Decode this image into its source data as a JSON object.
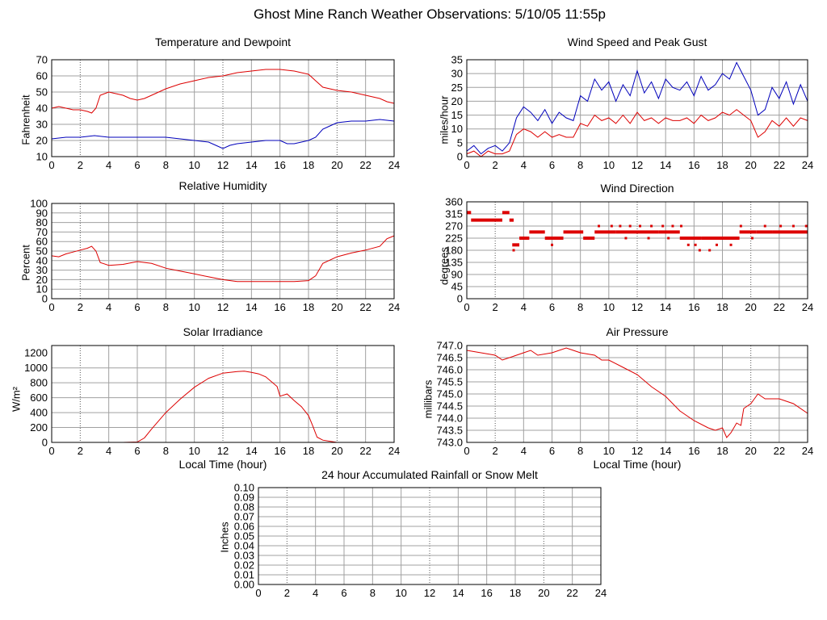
{
  "page": {
    "title": "Ghost Mine Ranch Weather Observations: 5/10/05 11:55p"
  },
  "colors": {
    "red": "#dd0000",
    "blue": "#0000bb",
    "grid": "#a0a0a0",
    "frame": "#000000"
  },
  "chart_data": [
    {
      "id": "temp",
      "type": "line",
      "title": "Temperature and Dewpoint",
      "ylabel": "Fahrenheit",
      "xlabel": "",
      "xlim": [
        0,
        24
      ],
      "ylim": [
        10,
        70
      ],
      "yticks": [
        10,
        20,
        30,
        40,
        50,
        60,
        70
      ],
      "xticks": [
        0,
        2,
        4,
        6,
        8,
        10,
        12,
        14,
        16,
        18,
        20,
        22,
        24
      ],
      "grid": true,
      "series": [
        {
          "color": "#dd0000",
          "x": [
            0,
            0.5,
            1,
            1.5,
            2,
            2.5,
            2.8,
            3.1,
            3.4,
            4,
            4.5,
            5,
            5.5,
            6,
            6.5,
            7,
            8,
            9,
            10,
            11,
            12,
            13,
            14,
            15,
            16,
            17,
            18,
            18.5,
            19,
            20,
            21,
            22,
            23,
            23.5,
            24
          ],
          "y": [
            40,
            41,
            40,
            39,
            39,
            38,
            37,
            40,
            48,
            50,
            49,
            48,
            46,
            45,
            46,
            48,
            52,
            55,
            57,
            59,
            60,
            62,
            63,
            64,
            64,
            63,
            61,
            57,
            53,
            51,
            50,
            48,
            46,
            44,
            43
          ]
        },
        {
          "color": "#0000bb",
          "x": [
            0,
            1,
            2,
            3,
            4,
            5,
            6,
            7,
            8,
            9,
            10,
            11,
            11.5,
            12,
            12.5,
            13,
            14,
            15,
            16,
            16.5,
            17,
            17.5,
            18,
            18.5,
            19,
            19.5,
            20,
            21,
            22,
            23,
            24
          ],
          "y": [
            21,
            22,
            22,
            23,
            22,
            22,
            22,
            22,
            22,
            21,
            20,
            19,
            17,
            15,
            17,
            18,
            19,
            20,
            20,
            18,
            18,
            19,
            20,
            22,
            27,
            29,
            31,
            32,
            32,
            33,
            32
          ]
        }
      ]
    },
    {
      "id": "wind",
      "type": "line",
      "title": "Wind Speed and Peak Gust",
      "ylabel": "miles/hour",
      "xlabel": "",
      "xlim": [
        0,
        24
      ],
      "ylim": [
        0,
        35
      ],
      "yticks": [
        0,
        5,
        10,
        15,
        20,
        25,
        30,
        35
      ],
      "xticks": [
        0,
        2,
        4,
        6,
        8,
        10,
        12,
        14,
        16,
        18,
        20,
        22,
        24
      ],
      "grid": true,
      "series": [
        {
          "color": "#0000bb",
          "x": [
            0,
            0.5,
            1,
            1.5,
            2,
            2.5,
            3,
            3.5,
            4,
            4.5,
            5,
            5.5,
            6,
            6.5,
            7,
            7.5,
            8,
            8.5,
            9,
            9.5,
            10,
            10.5,
            11,
            11.5,
            12,
            12.5,
            13,
            13.5,
            14,
            14.5,
            15,
            15.5,
            16,
            16.5,
            17,
            17.5,
            18,
            18.5,
            19,
            19.5,
            20,
            20.5,
            21,
            21.5,
            22,
            22.5,
            23,
            23.5,
            24
          ],
          "y": [
            2,
            4,
            1,
            3,
            4,
            2,
            5,
            14,
            18,
            16,
            13,
            17,
            12,
            16,
            14,
            13,
            22,
            20,
            28,
            24,
            27,
            20,
            26,
            22,
            31,
            23,
            27,
            21,
            28,
            25,
            24,
            27,
            22,
            29,
            24,
            26,
            30,
            28,
            34,
            29,
            24,
            15,
            17,
            25,
            21,
            27,
            19,
            26,
            20
          ]
        },
        {
          "color": "#dd0000",
          "x": [
            0,
            0.5,
            1,
            1.5,
            2,
            2.5,
            3,
            3.5,
            4,
            4.5,
            5,
            5.5,
            6,
            6.5,
            7,
            7.5,
            8,
            8.5,
            9,
            9.5,
            10,
            10.5,
            11,
            11.5,
            12,
            12.5,
            13,
            13.5,
            14,
            14.5,
            15,
            15.5,
            16,
            16.5,
            17,
            17.5,
            18,
            18.5,
            19,
            19.5,
            20,
            20.5,
            21,
            21.5,
            22,
            22.5,
            23,
            23.5,
            24
          ],
          "y": [
            1,
            2,
            0,
            2,
            1,
            1,
            2,
            8,
            10,
            9,
            7,
            9,
            7,
            8,
            7,
            7,
            12,
            11,
            15,
            13,
            14,
            12,
            15,
            12,
            16,
            13,
            14,
            12,
            14,
            13,
            13,
            14,
            12,
            15,
            13,
            14,
            16,
            15,
            17,
            15,
            13,
            7,
            9,
            13,
            11,
            14,
            11,
            14,
            13
          ]
        }
      ]
    },
    {
      "id": "rh",
      "type": "line",
      "title": "Relative Humidity",
      "ylabel": "Percent",
      "xlabel": "",
      "xlim": [
        0,
        24
      ],
      "ylim": [
        0,
        100
      ],
      "yticks": [
        0,
        10,
        20,
        30,
        40,
        50,
        60,
        70,
        80,
        90,
        100
      ],
      "xticks": [
        0,
        2,
        4,
        6,
        8,
        10,
        12,
        14,
        16,
        18,
        20,
        22,
        24
      ],
      "grid": true,
      "series": [
        {
          "color": "#dd0000",
          "x": [
            0,
            0.5,
            1,
            1.5,
            2,
            2.5,
            2.8,
            3.1,
            3.4,
            4,
            5,
            6,
            7,
            8,
            9,
            10,
            11,
            12,
            13,
            14,
            15,
            16,
            17,
            18,
            18.5,
            19,
            20,
            21,
            22,
            23,
            23.5,
            24
          ],
          "y": [
            45,
            44,
            47,
            49,
            51,
            53,
            55,
            50,
            38,
            35,
            36,
            39,
            37,
            32,
            29,
            26,
            23,
            20,
            18,
            18,
            18,
            18,
            18,
            19,
            24,
            37,
            44,
            48,
            51,
            55,
            63,
            66
          ]
        }
      ]
    },
    {
      "id": "dir",
      "type": "scatter",
      "title": "Wind Direction",
      "ylabel": "degrees",
      "xlabel": "",
      "xlim": [
        0,
        24
      ],
      "ylim": [
        0,
        360
      ],
      "yticks": [
        0,
        45,
        90,
        135,
        180,
        225,
        270,
        315,
        360
      ],
      "xticks": [
        0,
        2,
        4,
        6,
        8,
        10,
        12,
        14,
        16,
        18,
        20,
        22,
        24
      ],
      "grid": true,
      "series": [
        {
          "color": "#dd0000",
          "segments": [
            [
              0,
              0.3,
              320
            ],
            [
              0.3,
              2.5,
              292
            ],
            [
              2.5,
              3.0,
              320
            ],
            [
              3.0,
              3.3,
              292
            ],
            [
              3.2,
              3.7,
              200
            ],
            [
              3.7,
              4.4,
              225
            ],
            [
              4.4,
              5.5,
              248
            ],
            [
              5.5,
              6.8,
              225
            ],
            [
              6.8,
              8.2,
              248
            ],
            [
              8.2,
              9.0,
              225
            ],
            [
              9.0,
              10.5,
              248
            ],
            [
              10.5,
              12.0,
              248
            ],
            [
              12.0,
              13.5,
              248
            ],
            [
              13.5,
              15.0,
              248
            ],
            [
              15.0,
              16.5,
              225
            ],
            [
              16.5,
              18.0,
              225
            ],
            [
              18.0,
              19.2,
              225
            ],
            [
              19.2,
              20.4,
              248
            ],
            [
              20.4,
              21.5,
              248
            ],
            [
              21.5,
              24.0,
              248
            ]
          ],
          "points": [
            [
              3.3,
              180
            ],
            [
              6.0,
              200
            ],
            [
              9.3,
              270
            ],
            [
              10.2,
              270
            ],
            [
              10.8,
              270
            ],
            [
              11.5,
              270
            ],
            [
              12.2,
              270
            ],
            [
              13.0,
              270
            ],
            [
              13.8,
              270
            ],
            [
              14.5,
              270
            ],
            [
              15.1,
              270
            ],
            [
              15.6,
              200
            ],
            [
              16.1,
              200
            ],
            [
              16.4,
              180
            ],
            [
              17.1,
              180
            ],
            [
              17.6,
              200
            ],
            [
              18.6,
              200
            ],
            [
              19.3,
              270
            ],
            [
              20.1,
              225
            ],
            [
              21.0,
              270
            ],
            [
              22.1,
              270
            ],
            [
              23.0,
              270
            ],
            [
              23.9,
              270
            ],
            [
              11.2,
              225
            ],
            [
              12.8,
              225
            ],
            [
              14.2,
              225
            ]
          ]
        }
      ]
    },
    {
      "id": "solar",
      "type": "line",
      "title": "Solar Irradiance",
      "ylabel": "W/m²",
      "xlabel": "Local Time (hour)",
      "xlim": [
        0,
        24
      ],
      "ylim": [
        0,
        1300
      ],
      "yticks": [
        0,
        200,
        400,
        600,
        800,
        1000,
        1200
      ],
      "xticks": [
        0,
        2,
        4,
        6,
        8,
        10,
        12,
        14,
        16,
        18,
        20,
        22,
        24
      ],
      "grid": true,
      "series": [
        {
          "color": "#dd0000",
          "x": [
            0,
            5,
            6,
            6.5,
            7,
            8,
            9,
            10,
            11,
            12,
            13,
            13.5,
            14,
            14.5,
            15,
            15.5,
            15.8,
            16,
            16.5,
            17,
            17.5,
            18,
            18.3,
            18.6,
            19,
            20,
            24
          ],
          "y": [
            0,
            0,
            5,
            60,
            180,
            400,
            580,
            740,
            860,
            930,
            950,
            955,
            940,
            920,
            880,
            800,
            750,
            620,
            650,
            560,
            480,
            360,
            220,
            70,
            30,
            0,
            0
          ]
        }
      ]
    },
    {
      "id": "pressure",
      "type": "line",
      "title": "Air Pressure",
      "ylabel": "millibars",
      "xlabel": "Local Time (hour)",
      "xlim": [
        0,
        24
      ],
      "ylim": [
        743.0,
        747.0
      ],
      "yticks": [
        743.0,
        743.5,
        744.0,
        744.5,
        745.0,
        745.5,
        746.0,
        746.5,
        747.0
      ],
      "xticks": [
        0,
        2,
        4,
        6,
        8,
        10,
        12,
        14,
        16,
        18,
        20,
        22,
        24
      ],
      "grid": true,
      "series": [
        {
          "color": "#dd0000",
          "x": [
            0,
            1,
            2,
            2.5,
            3,
            4,
            4.5,
            5,
            6,
            7,
            7.5,
            8,
            9,
            9.5,
            10,
            11,
            12,
            13,
            14,
            15,
            16,
            17,
            17.5,
            18,
            18.3,
            18.6,
            19,
            19.3,
            19.5,
            20,
            20.5,
            21,
            22,
            23,
            24
          ],
          "y": [
            746.8,
            746.7,
            746.6,
            746.4,
            746.5,
            746.7,
            746.8,
            746.6,
            746.7,
            746.9,
            746.8,
            746.7,
            746.6,
            746.4,
            746.4,
            746.1,
            745.8,
            745.3,
            744.9,
            744.3,
            743.9,
            743.6,
            743.5,
            743.6,
            743.2,
            743.4,
            743.8,
            743.7,
            744.4,
            744.6,
            745.0,
            744.8,
            744.8,
            744.6,
            744.2
          ]
        }
      ]
    },
    {
      "id": "rain",
      "type": "line",
      "title": "24 hour Accumulated Rainfall or Snow Melt",
      "ylabel": "Inches",
      "xlabel": "",
      "xlim": [
        0,
        24
      ],
      "ylim": [
        0,
        0.1
      ],
      "yticks": [
        0.0,
        0.01,
        0.02,
        0.03,
        0.04,
        0.05,
        0.06,
        0.07,
        0.08,
        0.09,
        0.1
      ],
      "ytick_labels": [
        "0.00",
        "0.01",
        "0.02",
        "0.03",
        "0.04",
        "0.05",
        "0.06",
        "0.07",
        "0.08",
        "0.09",
        "0.10"
      ],
      "xticks": [
        0,
        2,
        4,
        6,
        8,
        10,
        12,
        14,
        16,
        18,
        20,
        22,
        24
      ],
      "grid": true,
      "series": [
        {
          "color": "#dd0000",
          "x": [
            0,
            24
          ],
          "y": [
            0,
            0
          ]
        }
      ]
    }
  ]
}
